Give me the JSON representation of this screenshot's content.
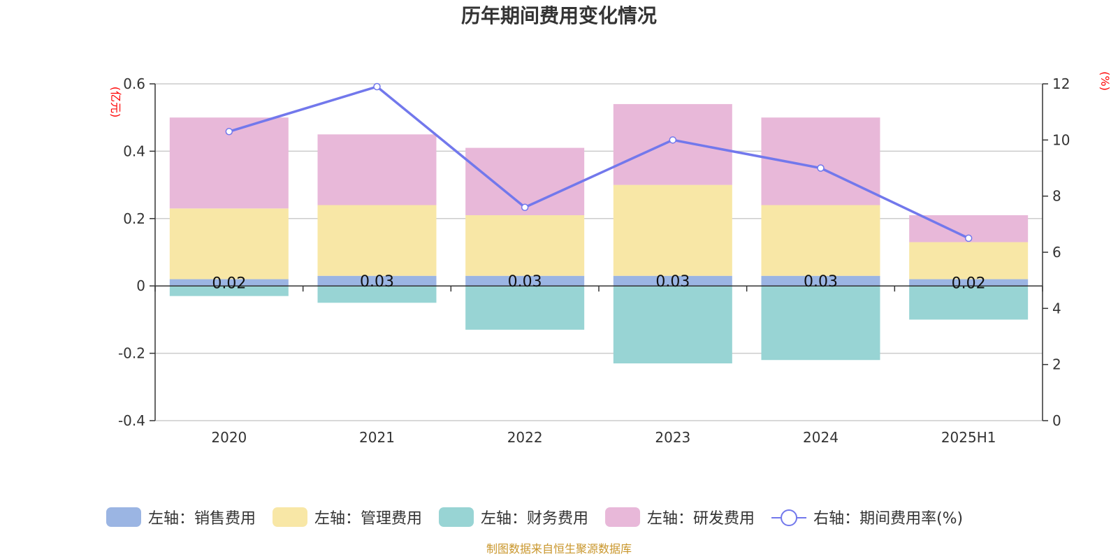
{
  "chart_data": {
    "type": "bar",
    "title": "历年期间费用变化情况",
    "categories": [
      "2020",
      "2021",
      "2022",
      "2023",
      "2024",
      "2025H1"
    ],
    "y_left": {
      "unit": "(亿元)",
      "min": -0.4,
      "max": 0.6,
      "ticks": [
        -0.4,
        -0.2,
        0,
        0.2,
        0.4,
        0.6
      ],
      "tick_labels": [
        "-0.4",
        "-0.2",
        "0",
        "0.2",
        "0.4",
        "0.6"
      ]
    },
    "y_right": {
      "unit": "(%)",
      "min": 0,
      "max": 12,
      "ticks": [
        0,
        2,
        4,
        6,
        8,
        10,
        12
      ],
      "tick_labels": [
        "0",
        "2",
        "4",
        "6",
        "8",
        "10",
        "12"
      ]
    },
    "series": [
      {
        "name": "左轴：销售费用",
        "color": "#9bb5e3",
        "values": [
          0.02,
          0.03,
          0.03,
          0.03,
          0.03,
          0.02
        ],
        "labels": [
          "0.02",
          "0.03",
          "0.03",
          "0.03",
          "0.03",
          "0.02"
        ]
      },
      {
        "name": "左轴：管理费用",
        "color": "#f8e7a6",
        "values": [
          0.21,
          0.21,
          0.18,
          0.27,
          0.21,
          0.11
        ]
      },
      {
        "name": "左轴：财务费用",
        "color": "#98d4d4",
        "values": [
          -0.03,
          -0.05,
          -0.13,
          -0.23,
          -0.22,
          -0.1
        ]
      },
      {
        "name": "左轴：研发费用",
        "color": "#e8b8d9",
        "values": [
          0.27,
          0.21,
          0.2,
          0.24,
          0.26,
          0.08
        ]
      }
    ],
    "line": {
      "name": "右轴：期间费用率(%)",
      "color": "#7278ec",
      "values": [
        10.3,
        11.9,
        7.6,
        10.0,
        9.0,
        6.5
      ]
    },
    "grid": true,
    "legend": "bottom"
  },
  "source_note": "制图数据来自恒生聚源数据库"
}
